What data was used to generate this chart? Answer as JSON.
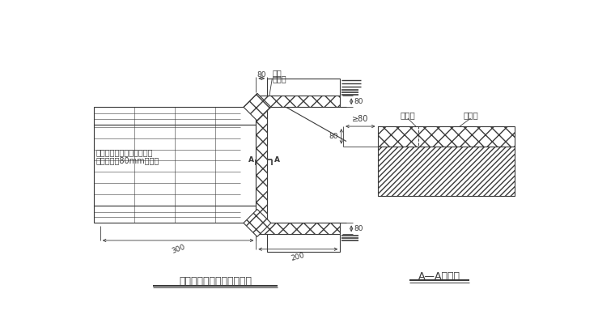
{
  "lc": "#3a3a3a",
  "title1": "门窗洞口附加网格布示意图",
  "title2": "A—A剑面图",
  "label_fujia": "附加",
  "label_wanggebu_top": "网格布",
  "label_wanggebu_r": "网格布",
  "label_jisueban": "挤塑板",
  "label_contact1": "与墙体接触一面用粘结砂浆",
  "label_contact2": "预粘不小于80mm网格布",
  "dim_80_top": "80",
  "dim_80_r1": "80",
  "dim_80_r2": "80",
  "dim_ge80": "≥80",
  "dim_300": "300",
  "dim_200": "200",
  "label_A": "A"
}
